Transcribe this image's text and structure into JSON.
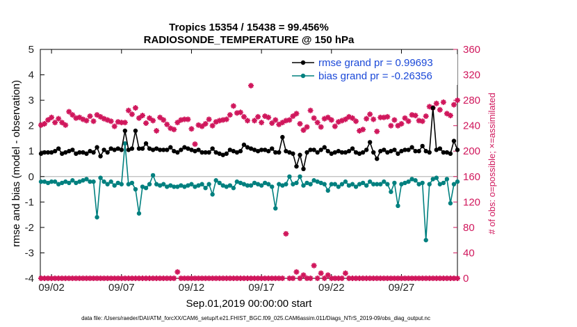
{
  "chart_data": {
    "type": "line",
    "title_line1": "Tropics 15354 / 15438 = 99.456%",
    "title_line2": "RADIOSONDE_TEMPERATURE @ 150 hPa",
    "ylabel_left": "rmse and bias (model - observation)",
    "ylabel_right": "# of obs: o=possible; ×=assimilated",
    "xlabel": "Sep.01,2019 00:00:00 start",
    "footer": "data file: /Users/raeder/DAI/ATM_forcXX/CAM6_setup/f.e21.FHIST_BGC.f09_025.CAM6assim.011/Diags_NTrS_2019-09/obs_diag_output.nc",
    "xlim": [
      1.2,
      31.0
    ],
    "ylim_left": [
      -4,
      5
    ],
    "ylim_right": [
      0,
      360
    ],
    "x_ticks": [
      {
        "x": 2,
        "label": "09/02"
      },
      {
        "x": 7,
        "label": "09/07"
      },
      {
        "x": 12,
        "label": "09/12"
      },
      {
        "x": 17,
        "label": "09/17"
      },
      {
        "x": 22,
        "label": "09/22"
      },
      {
        "x": 27,
        "label": "09/27"
      }
    ],
    "y_left_ticks": [
      -4,
      -3,
      -2,
      -1,
      0,
      1,
      2,
      3,
      4,
      5
    ],
    "y_right_ticks": [
      0,
      40,
      80,
      120,
      160,
      200,
      240,
      280,
      320,
      360
    ],
    "colors": {
      "rmse": "#000000",
      "bias": "#00807f",
      "obs": "#d0175c",
      "legend_text": "#1a48d8",
      "zero_line": "#bbbbbb"
    },
    "x": [
      1.25,
      1.5,
      1.75,
      2.0,
      2.25,
      2.5,
      2.75,
      3.0,
      3.25,
      3.5,
      3.75,
      4.0,
      4.25,
      4.5,
      4.75,
      5.0,
      5.25,
      5.5,
      5.75,
      6.0,
      6.25,
      6.5,
      6.75,
      7.0,
      7.25,
      7.5,
      7.75,
      8.0,
      8.25,
      8.5,
      8.75,
      9.0,
      9.25,
      9.5,
      9.75,
      10.0,
      10.25,
      10.5,
      10.75,
      11.0,
      11.25,
      11.5,
      11.75,
      12.0,
      12.25,
      12.5,
      12.75,
      13.0,
      13.25,
      13.5,
      13.75,
      14.0,
      14.25,
      14.5,
      14.75,
      15.0,
      15.25,
      15.5,
      15.75,
      16.0,
      16.25,
      16.5,
      16.75,
      17.0,
      17.25,
      17.5,
      17.75,
      18.0,
      18.25,
      18.5,
      18.75,
      19.0,
      19.25,
      19.5,
      19.75,
      20.0,
      20.25,
      20.5,
      20.75,
      21.0,
      21.25,
      21.5,
      21.75,
      22.0,
      22.25,
      22.5,
      22.75,
      23.0,
      23.25,
      23.5,
      23.75,
      24.0,
      24.25,
      24.5,
      24.75,
      25.0,
      25.25,
      25.5,
      25.75,
      26.0,
      26.25,
      26.5,
      26.75,
      27.0,
      27.25,
      27.5,
      27.75,
      28.0,
      28.25,
      28.5,
      28.75,
      29.0,
      29.25,
      29.5,
      29.75,
      30.0,
      30.25,
      30.5,
      30.75,
      31.0
    ],
    "series": [
      {
        "name": "rmse",
        "legend_label": "rmse grand pr = 0.99693",
        "values": [
          0.9,
          0.95,
          0.95,
          0.95,
          1.0,
          1.1,
          0.9,
          0.95,
          1.0,
          1.05,
          0.9,
          0.95,
          0.95,
          0.9,
          1.0,
          0.95,
          1.15,
          0.8,
          1.05,
          0.95,
          1.1,
          1.05,
          1.1,
          1.05,
          1.8,
          1.05,
          1.1,
          1.8,
          1.1,
          1.1,
          1.3,
          1.1,
          1.05,
          1.1,
          1.05,
          1.05,
          1.05,
          1.15,
          1.0,
          0.95,
          1.05,
          1.15,
          1.1,
          1.05,
          1.0,
          1.05,
          0.95,
          0.95,
          0.95,
          1.1,
          0.95,
          0.9,
          0.85,
          0.9,
          1.05,
          1.0,
          0.95,
          1.0,
          1.25,
          1.15,
          1.1,
          1.05,
          1.0,
          1.05,
          1.05,
          1.0,
          1.1,
          0.95,
          0.95,
          1.55,
          1.0,
          0.95,
          0.9,
          0.4,
          0.85,
          0.3,
          0.95,
          1.05,
          1.05,
          0.95,
          1.05,
          1.15,
          1.0,
          0.9,
          0.95,
          1.0,
          0.95,
          0.95,
          1.0,
          1.1,
          0.95,
          0.9,
          0.95,
          1.05,
          1.35,
          0.95,
          0.7,
          1.0,
          1.05,
          0.95,
          1.0,
          1.05,
          0.9,
          1.0,
          1.05,
          1.05,
          1.15,
          1.0,
          1.0,
          1.2,
          1.0,
          0.95,
          2.7,
          1.05,
          1.1,
          0.95,
          0.95,
          0.9,
          1.4,
          1.05
        ]
      },
      {
        "name": "bias",
        "legend_label": "bias grand pr = -0.26356",
        "values": [
          -0.2,
          -0.2,
          -0.25,
          -0.2,
          -0.2,
          -0.3,
          -0.25,
          -0.2,
          -0.25,
          -0.15,
          -0.25,
          -0.2,
          -0.15,
          -0.1,
          -0.2,
          -0.2,
          -1.6,
          -0.05,
          -0.2,
          -0.3,
          -0.2,
          -0.35,
          -0.25,
          -0.3,
          1.3,
          -0.3,
          -0.25,
          -0.5,
          -1.45,
          -0.4,
          -0.45,
          -0.3,
          0.05,
          -0.3,
          -0.35,
          -0.3,
          -0.4,
          -0.35,
          -0.4,
          -0.4,
          -0.35,
          -0.4,
          -0.35,
          -0.3,
          -0.4,
          -0.35,
          -0.3,
          -0.45,
          -0.3,
          -0.7,
          -0.15,
          -0.25,
          -0.35,
          -0.4,
          -0.35,
          -0.45,
          -0.2,
          -0.25,
          -0.3,
          -0.35,
          -0.35,
          -0.25,
          -0.3,
          -0.35,
          -0.25,
          -0.3,
          -0.4,
          -1.25,
          -0.3,
          -0.35,
          -0.3,
          0.0,
          -0.3,
          -0.25,
          0.0,
          -0.35,
          -0.25,
          -0.3,
          -0.15,
          -0.2,
          -0.25,
          -0.3,
          -0.55,
          -0.3,
          -0.3,
          -0.4,
          -0.3,
          -0.2,
          -0.35,
          -0.3,
          -0.4,
          -0.3,
          -0.25,
          -0.35,
          -0.2,
          -0.3,
          -0.3,
          -0.3,
          -0.2,
          -0.3,
          -0.6,
          -0.25,
          -1.15,
          -0.3,
          -0.25,
          -0.2,
          -0.1,
          -0.15,
          -0.3,
          -0.25,
          -2.5,
          -0.3,
          -0.1,
          -0.05,
          -0.3,
          -0.25,
          -0.1,
          -1.05,
          -0.3,
          -0.2
        ]
      },
      {
        "name": "obs_possible_upper",
        "axis": "right",
        "values": [
          241,
          243,
          249,
          253,
          245,
          251,
          245,
          241,
          262,
          257,
          252,
          253,
          250,
          248,
          255,
          247,
          257,
          254,
          251,
          249,
          247,
          239,
          246,
          245,
          245,
          264,
          258,
          268,
          252,
          256,
          244,
          252,
          248,
          232,
          253,
          249,
          242,
          236,
          234,
          245,
          249,
          250,
          250,
          235,
          211,
          241,
          239,
          243,
          250,
          240,
          246,
          248,
          249,
          250,
          257,
          271,
          260,
          261,
          254,
          248,
          303,
          248,
          254,
          245,
          255,
          253,
          244,
          249,
          242,
          245,
          248,
          249,
          255,
          259,
          243,
          233,
          238,
          264,
          252,
          245,
          238,
          251,
          253,
          249,
          239,
          246,
          248,
          250,
          254,
          252,
          247,
          232,
          234,
          251,
          258,
          250,
          231,
          253,
          253,
          254,
          240,
          249,
          240,
          243,
          252,
          247,
          257,
          256,
          248,
          247,
          255,
          270,
          268,
          275,
          265,
          277,
          259,
          256,
          273,
          280
        ]
      },
      {
        "name": "obs_possible_lower",
        "axis": "right",
        "values": [
          0,
          0,
          0,
          0,
          0,
          0,
          0,
          0,
          0,
          0,
          0,
          0,
          0,
          0,
          0,
          0,
          0,
          0,
          0,
          0,
          0,
          0,
          0,
          0,
          0,
          0,
          0,
          0,
          0,
          0,
          0,
          0,
          0,
          0,
          0,
          0,
          0,
          0,
          0,
          10,
          0,
          0,
          0,
          0,
          0,
          0,
          0,
          0,
          0,
          0,
          0,
          0,
          0,
          0,
          0,
          0,
          0,
          0,
          0,
          0,
          0,
          0,
          0,
          0,
          0,
          0,
          0,
          0,
          0,
          0,
          70,
          0,
          0,
          10,
          0,
          5,
          0,
          0,
          20,
          0,
          8,
          0,
          5,
          0,
          0,
          0,
          0,
          8,
          0,
          0,
          0,
          0,
          0,
          0,
          0,
          0,
          0,
          0,
          0,
          0,
          0,
          0,
          0,
          0,
          0,
          0,
          0,
          0,
          0,
          0,
          0,
          0,
          0,
          0,
          0,
          0,
          0,
          0,
          0,
          0
        ]
      }
    ],
    "legend": {
      "placement": "top-right"
    }
  }
}
